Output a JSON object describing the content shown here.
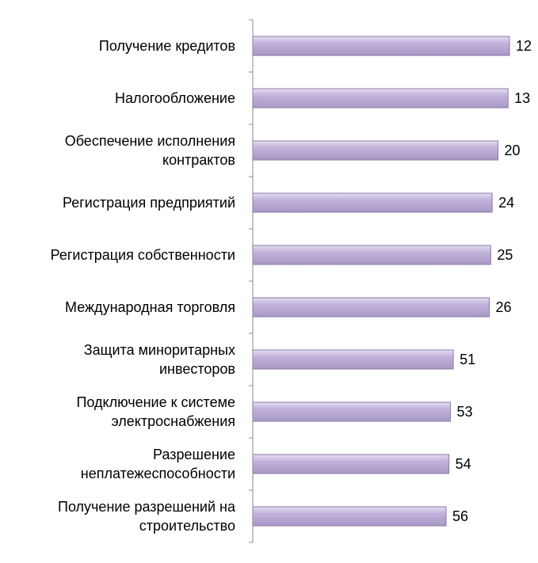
{
  "chart_data": {
    "type": "bar",
    "orientation": "horizontal",
    "title": "",
    "xlabel": "",
    "ylabel": "",
    "grid": false,
    "legend": "none",
    "value_axis_reversed": true,
    "xlim": [
      0,
      60
    ],
    "bar_color": "#b8a7d3",
    "bar_edge_color": "#8a7aa3",
    "categories": [
      [
        "Получение кредитов"
      ],
      [
        "Налогообложение"
      ],
      [
        "Обеспечение исполнения",
        "контрактов"
      ],
      [
        "Регистрация предприятий"
      ],
      [
        "Регистрация собственности"
      ],
      [
        "Международная торговля"
      ],
      [
        "Защита миноритарных",
        "инвесторов"
      ],
      [
        "Подключение к системе",
        "электроснабжения"
      ],
      [
        "Разрешение",
        "неплатежеспособности"
      ],
      [
        "Получение разрешений на",
        "строительство"
      ]
    ],
    "values": [
      12,
      13,
      20,
      24,
      25,
      26,
      51,
      53,
      54,
      56
    ]
  }
}
